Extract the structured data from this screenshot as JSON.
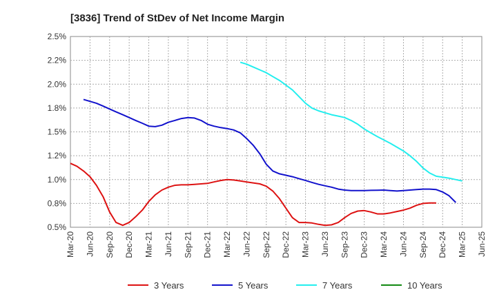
{
  "chart_data": {
    "type": "line",
    "title": "[3836]  Trend of StDev of Net Income Margin",
    "xlabel": "",
    "ylabel": "",
    "x_ticks": [
      "Mar-20",
      "Jun-20",
      "Sep-20",
      "Dec-20",
      "Mar-21",
      "Jun-21",
      "Sep-21",
      "Dec-21",
      "Mar-22",
      "Jun-22",
      "Sep-22",
      "Dec-22",
      "Mar-23",
      "Jun-23",
      "Sep-23",
      "Dec-23",
      "Mar-24",
      "Jun-24",
      "Sep-24",
      "Dec-24",
      "Mar-25",
      "Jun-25"
    ],
    "y_ticks": [
      "0.5%",
      "0.8%",
      "1.0%",
      "1.2%",
      "1.5%",
      "1.8%",
      "2.0%",
      "2.2%",
      "2.5%"
    ],
    "ylim": [
      0.5,
      2.5
    ],
    "grid": true,
    "legend_position": "bottom",
    "series": [
      {
        "name": "3 Years",
        "color": "#dd1111",
        "points": [
          [
            0,
            1.17
          ],
          [
            0.33,
            1.14
          ],
          [
            0.67,
            1.09
          ],
          [
            1,
            1.03
          ],
          [
            1.33,
            0.94
          ],
          [
            1.67,
            0.82
          ],
          [
            2,
            0.66
          ],
          [
            2.33,
            0.55
          ],
          [
            2.67,
            0.52
          ],
          [
            3,
            0.55
          ],
          [
            3.33,
            0.61
          ],
          [
            3.67,
            0.68
          ],
          [
            4,
            0.77
          ],
          [
            4.33,
            0.84
          ],
          [
            4.67,
            0.89
          ],
          [
            5,
            0.92
          ],
          [
            5.33,
            0.94
          ],
          [
            5.67,
            0.945
          ],
          [
            6,
            0.945
          ],
          [
            6.33,
            0.95
          ],
          [
            6.67,
            0.955
          ],
          [
            7,
            0.96
          ],
          [
            7.33,
            0.975
          ],
          [
            7.67,
            0.99
          ],
          [
            8,
            1.0
          ],
          [
            8.33,
            0.995
          ],
          [
            8.67,
            0.985
          ],
          [
            9,
            0.975
          ],
          [
            9.33,
            0.965
          ],
          [
            9.67,
            0.955
          ],
          [
            10,
            0.93
          ],
          [
            10.33,
            0.88
          ],
          [
            10.67,
            0.8
          ],
          [
            11,
            0.7
          ],
          [
            11.33,
            0.6
          ],
          [
            11.67,
            0.55
          ],
          [
            12,
            0.55
          ],
          [
            12.33,
            0.545
          ],
          [
            12.67,
            0.53
          ],
          [
            13,
            0.52
          ],
          [
            13.33,
            0.525
          ],
          [
            13.67,
            0.55
          ],
          [
            14,
            0.6
          ],
          [
            14.33,
            0.645
          ],
          [
            14.67,
            0.67
          ],
          [
            15,
            0.675
          ],
          [
            15.33,
            0.66
          ],
          [
            15.67,
            0.64
          ],
          [
            16,
            0.64
          ],
          [
            16.33,
            0.65
          ],
          [
            16.67,
            0.665
          ],
          [
            17,
            0.68
          ],
          [
            17.33,
            0.7
          ],
          [
            17.67,
            0.73
          ],
          [
            18,
            0.75
          ],
          [
            18.33,
            0.755
          ],
          [
            18.67,
            0.755
          ]
        ]
      },
      {
        "name": "5 Years",
        "color": "#1111cc",
        "points": [
          [
            0.67,
            1.84
          ],
          [
            1,
            1.82
          ],
          [
            1.33,
            1.8
          ],
          [
            1.67,
            1.77
          ],
          [
            2,
            1.74
          ],
          [
            2.33,
            1.71
          ],
          [
            2.67,
            1.68
          ],
          [
            3,
            1.65
          ],
          [
            3.33,
            1.62
          ],
          [
            3.67,
            1.59
          ],
          [
            4,
            1.56
          ],
          [
            4.33,
            1.555
          ],
          [
            4.67,
            1.57
          ],
          [
            5,
            1.6
          ],
          [
            5.33,
            1.62
          ],
          [
            5.67,
            1.64
          ],
          [
            6,
            1.65
          ],
          [
            6.33,
            1.645
          ],
          [
            6.67,
            1.62
          ],
          [
            7,
            1.58
          ],
          [
            7.33,
            1.56
          ],
          [
            7.67,
            1.545
          ],
          [
            8,
            1.535
          ],
          [
            8.33,
            1.52
          ],
          [
            8.67,
            1.49
          ],
          [
            9,
            1.43
          ],
          [
            9.33,
            1.36
          ],
          [
            9.67,
            1.27
          ],
          [
            10,
            1.16
          ],
          [
            10.33,
            1.09
          ],
          [
            10.67,
            1.06
          ],
          [
            11,
            1.045
          ],
          [
            11.33,
            1.03
          ],
          [
            11.67,
            1.01
          ],
          [
            12,
            0.99
          ],
          [
            12.33,
            0.97
          ],
          [
            12.67,
            0.95
          ],
          [
            13,
            0.935
          ],
          [
            13.33,
            0.92
          ],
          [
            13.67,
            0.9
          ],
          [
            14,
            0.89
          ],
          [
            14.33,
            0.885
          ],
          [
            14.67,
            0.885
          ],
          [
            15,
            0.885
          ],
          [
            15.33,
            0.887
          ],
          [
            15.67,
            0.888
          ],
          [
            16,
            0.89
          ],
          [
            16.33,
            0.885
          ],
          [
            16.67,
            0.88
          ],
          [
            17,
            0.885
          ],
          [
            17.33,
            0.89
          ],
          [
            17.67,
            0.895
          ],
          [
            18,
            0.9
          ],
          [
            18.33,
            0.9
          ],
          [
            18.67,
            0.895
          ],
          [
            19,
            0.87
          ],
          [
            19.33,
            0.83
          ],
          [
            19.67,
            0.76
          ]
        ]
      },
      {
        "name": "7 Years",
        "color": "#22eeee",
        "points": [
          [
            8.67,
            2.23
          ],
          [
            9,
            2.21
          ],
          [
            9.33,
            2.18
          ],
          [
            9.67,
            2.15
          ],
          [
            10,
            2.12
          ],
          [
            10.33,
            2.08
          ],
          [
            10.67,
            2.04
          ],
          [
            11,
            1.99
          ],
          [
            11.33,
            1.94
          ],
          [
            11.67,
            1.87
          ],
          [
            12,
            1.8
          ],
          [
            12.33,
            1.75
          ],
          [
            12.67,
            1.72
          ],
          [
            13,
            1.7
          ],
          [
            13.33,
            1.68
          ],
          [
            13.67,
            1.665
          ],
          [
            14,
            1.65
          ],
          [
            14.33,
            1.62
          ],
          [
            14.67,
            1.58
          ],
          [
            15,
            1.53
          ],
          [
            15.33,
            1.49
          ],
          [
            15.67,
            1.45
          ],
          [
            16,
            1.415
          ],
          [
            16.33,
            1.38
          ],
          [
            16.67,
            1.34
          ],
          [
            17,
            1.3
          ],
          [
            17.33,
            1.25
          ],
          [
            17.67,
            1.19
          ],
          [
            18,
            1.12
          ],
          [
            18.33,
            1.07
          ],
          [
            18.67,
            1.035
          ],
          [
            19,
            1.025
          ],
          [
            19.33,
            1.015
          ],
          [
            19.67,
            1.0
          ],
          [
            20,
            0.985
          ]
        ]
      },
      {
        "name": "10 Years",
        "color": "#118811",
        "points": []
      }
    ]
  }
}
